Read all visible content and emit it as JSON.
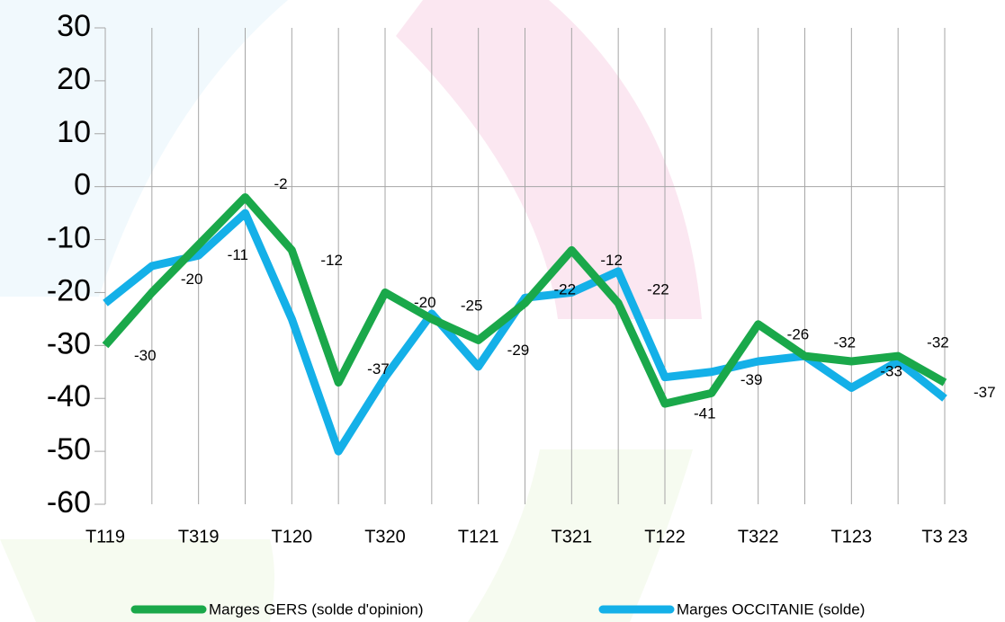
{
  "chart_data": {
    "type": "line",
    "categories": [
      "T119",
      null,
      "T319",
      null,
      "T120",
      null,
      "T320",
      null,
      "T121",
      null,
      "T321",
      null,
      "T122",
      null,
      "T322",
      null,
      "T123",
      null,
      "T3 23"
    ],
    "series": [
      {
        "name": "Marges GERS (solde d'opinion)",
        "color": "#1aa84a",
        "values": [
          -30,
          -20,
          -11,
          -2,
          -12,
          -37,
          -20,
          -25,
          -29,
          -22,
          -12,
          -22,
          -41,
          -39,
          -26,
          -32,
          -33,
          -32,
          -37
        ]
      },
      {
        "name": "Marges OCCITANIE (solde)",
        "color": "#14b0e8",
        "values": [
          -22,
          -15,
          -13,
          -5,
          -25,
          -50,
          -36,
          -24,
          -34,
          -21,
          -20,
          -16,
          -36,
          -35,
          -33,
          -32,
          -38,
          -33,
          -40
        ]
      }
    ],
    "data_labels_series": 0,
    "ylim": [
      -60,
      30
    ],
    "yticks": [
      30,
      20,
      10,
      0,
      -10,
      -20,
      -30,
      -40,
      -50,
      -60
    ],
    "grid": true
  }
}
